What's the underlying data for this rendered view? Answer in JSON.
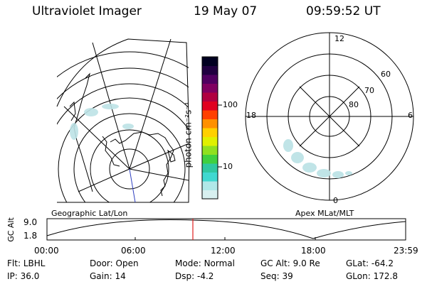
{
  "header": {
    "instrument": "Ultraviolet Imager",
    "date": "19 May 07",
    "time": "09:59:52 UT"
  },
  "geo_panel": {
    "caption": "Geographic Lat/Lon"
  },
  "apex_panel": {
    "caption": "Apex MLat/MLT",
    "mlt_labels": [
      "12",
      "18",
      "6",
      "0"
    ],
    "lat_labels": [
      "60",
      "70",
      "80"
    ]
  },
  "colorbar": {
    "label": "photon cm⁻²s⁻¹",
    "ticks": [
      {
        "value": 100,
        "label": "100"
      },
      {
        "value": 10,
        "label": "10"
      }
    ],
    "colors": [
      "#d8f0f0",
      "#b0e8e8",
      "#40d8d0",
      "#30c8a0",
      "#40d040",
      "#90e020",
      "#e0f000",
      "#ffd000",
      "#ff9000",
      "#ff4000",
      "#e00020",
      "#b00040",
      "#800060",
      "#500060",
      "#200040",
      "#000020"
    ]
  },
  "altitude_plot": {
    "ylabel": "GC Alt",
    "y_ticks": [
      "9.0",
      "1.8"
    ],
    "x_ticks": [
      "00:00",
      "06:00",
      "12:00",
      "18:00",
      "23:59"
    ],
    "current_time_marker": "09:59:52"
  },
  "status": {
    "row1": [
      {
        "key": "Flt:",
        "value": "LBHL"
      },
      {
        "key": "Door:",
        "value": "Open"
      },
      {
        "key": "Mode:",
        "value": "Normal"
      },
      {
        "key": "GC Alt:",
        "value": "9.0 Re"
      },
      {
        "key": "GLat:",
        "value": "-64.2"
      }
    ],
    "row2": [
      {
        "key": "IP:",
        "value": "36.0"
      },
      {
        "key": "Gain:",
        "value": "14"
      },
      {
        "key": "Dsp:",
        "value": "-4.2"
      },
      {
        "key": "Seq:",
        "value": "39"
      },
      {
        "key": "GLon:",
        "value": "172.8"
      }
    ]
  }
}
